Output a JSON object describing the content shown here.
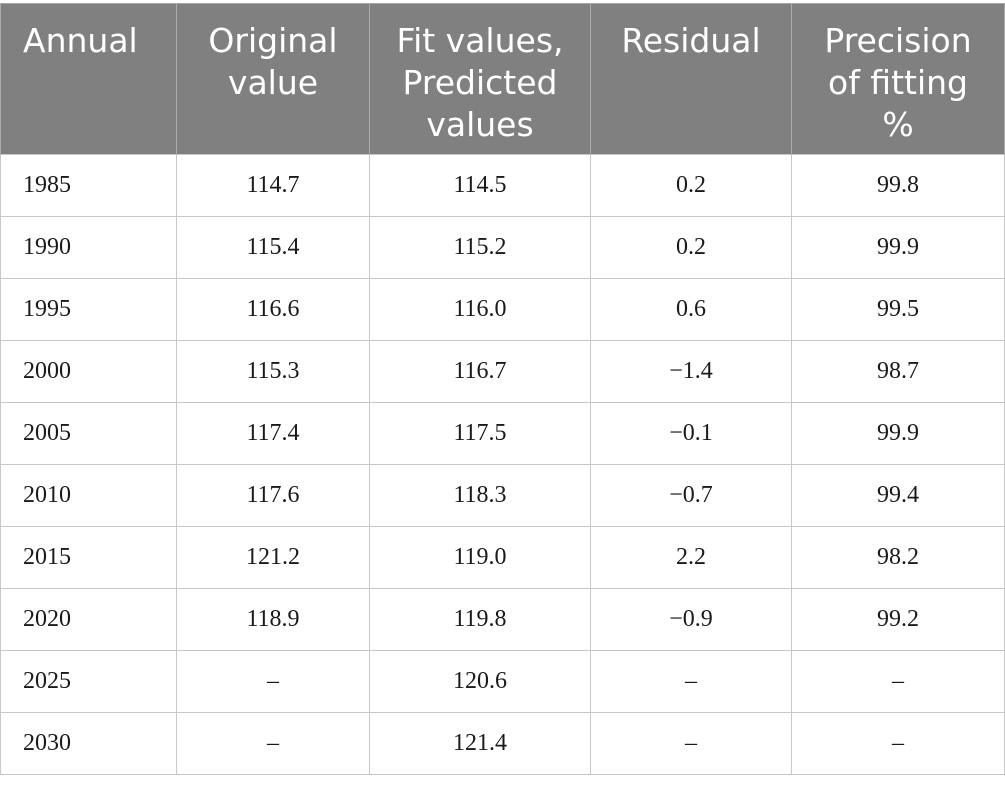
{
  "table": {
    "header": {
      "annual": "Annual",
      "original_value": "Original value",
      "fit_values": "Fit values, Predicted values",
      "residual": "Residual",
      "precision": "Precision of fitting %"
    },
    "header_lines": {
      "annual": [
        "Annual"
      ],
      "original_value": [
        "Original",
        "value"
      ],
      "fit_values": [
        "Fit values,",
        "Predicted",
        "values"
      ],
      "residual": [
        "Residual"
      ],
      "precision": [
        "Precision",
        "of fitting",
        "%"
      ]
    },
    "rows": [
      {
        "year": "1985",
        "original": "114.7",
        "fit": "114.5",
        "residual": "0.2",
        "precision": "99.8"
      },
      {
        "year": "1990",
        "original": "115.4",
        "fit": "115.2",
        "residual": "0.2",
        "precision": "99.9"
      },
      {
        "year": "1995",
        "original": "116.6",
        "fit": "116.0",
        "residual": "0.6",
        "precision": "99.5"
      },
      {
        "year": "2000",
        "original": "115.3",
        "fit": "116.7",
        "residual": "−1.4",
        "precision": "98.7"
      },
      {
        "year": "2005",
        "original": "117.4",
        "fit": "117.5",
        "residual": "−0.1",
        "precision": "99.9"
      },
      {
        "year": "2010",
        "original": "117.6",
        "fit": "118.3",
        "residual": "−0.7",
        "precision": "99.4"
      },
      {
        "year": "2015",
        "original": "121.2",
        "fit": "119.0",
        "residual": "2.2",
        "precision": "98.2"
      },
      {
        "year": "2020",
        "original": "118.9",
        "fit": "119.8",
        "residual": "−0.9",
        "precision": "99.2"
      },
      {
        "year": "2025",
        "original": "–",
        "fit": "120.6",
        "residual": "–",
        "precision": "–"
      },
      {
        "year": "2030",
        "original": "–",
        "fit": "121.4",
        "residual": "–",
        "precision": "–"
      }
    ],
    "colors": {
      "header_bg": "#7f807f",
      "header_text": "#ffffff",
      "grid": "#c8c8c8",
      "body_text": "#1a1a1a"
    }
  }
}
